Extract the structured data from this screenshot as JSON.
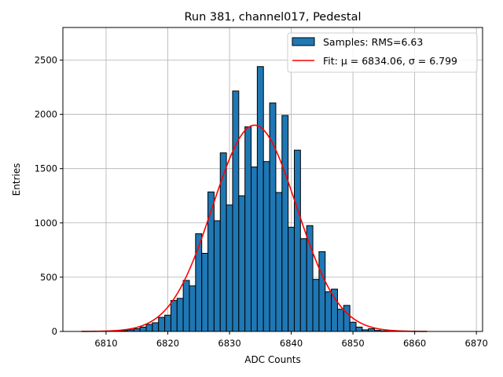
{
  "chart_data": {
    "type": "bar",
    "title": "Run 381, channel017, Pedestal",
    "xlabel": "ADC Counts",
    "ylabel": "Entries",
    "xlim": [
      6803,
      6871
    ],
    "ylim": [
      0,
      2800
    ],
    "grid": true,
    "legend_position": "top-right",
    "xticks": [
      "6810",
      "6820",
      "6830",
      "6840",
      "6850",
      "6860",
      "6870"
    ],
    "yticks": [
      "0",
      "500",
      "1000",
      "1500",
      "2000",
      "2500"
    ],
    "colors": {
      "bars": "#1f77b4",
      "bar_edge": "#000000",
      "fit": "#ff0000"
    },
    "histogram": {
      "name": "Samples: RMS=6.63",
      "bin_width": 1,
      "bins": [
        {
          "x": 6812,
          "y": 3
        },
        {
          "x": 6813,
          "y": 8
        },
        {
          "x": 6814,
          "y": 15
        },
        {
          "x": 6815,
          "y": 25
        },
        {
          "x": 6816,
          "y": 40
        },
        {
          "x": 6817,
          "y": 65
        },
        {
          "x": 6818,
          "y": 80
        },
        {
          "x": 6819,
          "y": 130
        },
        {
          "x": 6820,
          "y": 150
        },
        {
          "x": 6821,
          "y": 285
        },
        {
          "x": 6822,
          "y": 305
        },
        {
          "x": 6823,
          "y": 470
        },
        {
          "x": 6824,
          "y": 420
        },
        {
          "x": 6825,
          "y": 900
        },
        {
          "x": 6826,
          "y": 720
        },
        {
          "x": 6827,
          "y": 1285
        },
        {
          "x": 6828,
          "y": 1020
        },
        {
          "x": 6829,
          "y": 1645
        },
        {
          "x": 6830,
          "y": 1165
        },
        {
          "x": 6831,
          "y": 2215
        },
        {
          "x": 6832,
          "y": 1250
        },
        {
          "x": 6833,
          "y": 1885
        },
        {
          "x": 6834,
          "y": 1515
        },
        {
          "x": 6835,
          "y": 2440
        },
        {
          "x": 6836,
          "y": 1565
        },
        {
          "x": 6837,
          "y": 2105
        },
        {
          "x": 6838,
          "y": 1280
        },
        {
          "x": 6839,
          "y": 1990
        },
        {
          "x": 6840,
          "y": 960
        },
        {
          "x": 6841,
          "y": 1670
        },
        {
          "x": 6842,
          "y": 855
        },
        {
          "x": 6843,
          "y": 975
        },
        {
          "x": 6844,
          "y": 480
        },
        {
          "x": 6845,
          "y": 735
        },
        {
          "x": 6846,
          "y": 365
        },
        {
          "x": 6847,
          "y": 390
        },
        {
          "x": 6848,
          "y": 205
        },
        {
          "x": 6849,
          "y": 240
        },
        {
          "x": 6850,
          "y": 85
        },
        {
          "x": 6851,
          "y": 40
        },
        {
          "x": 6852,
          "y": 15
        },
        {
          "x": 6853,
          "y": 25
        },
        {
          "x": 6854,
          "y": 10
        },
        {
          "x": 6855,
          "y": 5
        },
        {
          "x": 6856,
          "y": 3
        }
      ]
    },
    "fit": {
      "type": "gaussian",
      "label": "Fit: μ = 6834.06, σ = 6.799",
      "mu": 6834.06,
      "sigma": 6.799,
      "amplitude": 1900,
      "x_range": [
        6806,
        6862
      ]
    }
  }
}
